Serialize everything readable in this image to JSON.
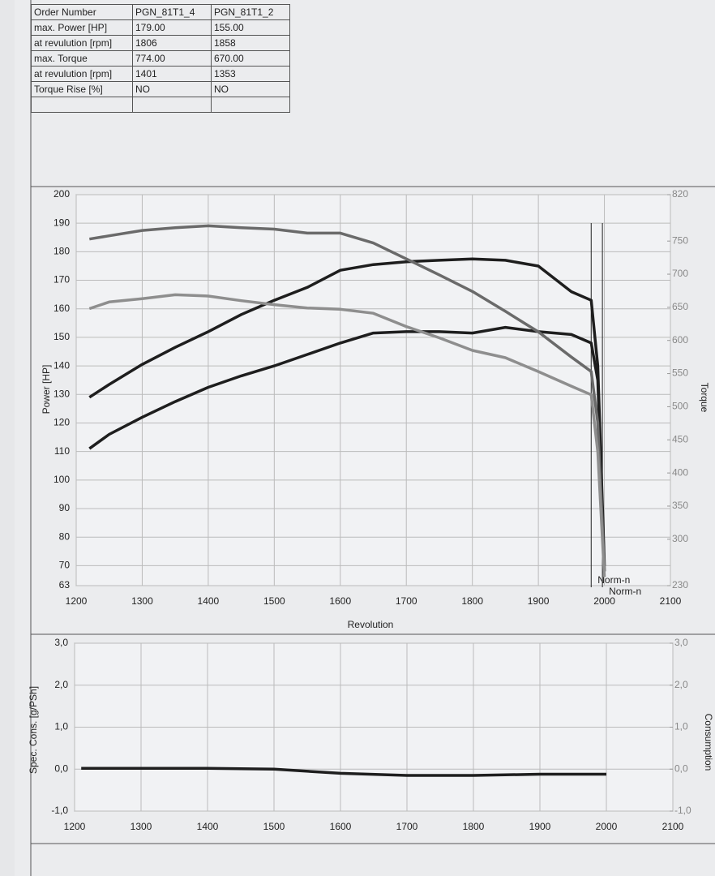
{
  "table": {
    "rows": [
      [
        "Order Number",
        "PGN_81T1_4",
        "PGN_81T1_2"
      ],
      [
        "max. Power [HP]",
        "179.00",
        "155.00"
      ],
      [
        "at revulution [rpm]",
        "1806",
        "1858"
      ],
      [
        "max. Torque",
        "774.00",
        "670.00"
      ],
      [
        "at revulution [rpm]",
        "1401",
        "1353"
      ],
      [
        "Torque Rise [%]",
        "NO",
        "NO"
      ]
    ]
  },
  "chart_data": [
    {
      "type": "line",
      "x_label": "Revolution",
      "y_label": "Power [HP]",
      "y2_label": "Torque",
      "grid": true,
      "x": [
        1220,
        1250,
        1300,
        1350,
        1400,
        1450,
        1500,
        1550,
        1600,
        1650,
        1700,
        1750,
        1800,
        1850,
        1900,
        1950,
        1980,
        1990,
        2000
      ],
      "xlim": [
        1200,
        2100
      ],
      "xticks": [
        1200,
        1300,
        1400,
        1500,
        1600,
        1700,
        1800,
        1900,
        2000,
        2100
      ],
      "ylim": [
        63,
        200
      ],
      "yticks": [
        63,
        70,
        80,
        90,
        100,
        110,
        120,
        130,
        140,
        150,
        160,
        170,
        180,
        190,
        200
      ],
      "y2lim": [
        230,
        820
      ],
      "y2ticks": [
        230,
        300,
        350,
        400,
        450,
        500,
        550,
        600,
        650,
        700,
        750,
        820
      ],
      "series": [
        {
          "color": "#1e1e1e",
          "values": [
            129,
            133.5,
            140.5,
            146.5,
            152,
            158,
            163,
            167.5,
            173.5,
            175.5,
            176.5,
            177,
            177.5,
            177,
            175,
            166,
            163,
            140,
            70
          ]
        },
        {
          "color": "#1e1e1e",
          "values": [
            111,
            116,
            122,
            127.5,
            132.5,
            136.5,
            140,
            144,
            148,
            151.5,
            152,
            152,
            151.5,
            153.5,
            152,
            151,
            148,
            135,
            68
          ]
        },
        {
          "color": "#6a6a6a",
          "axis": "y2",
          "values": [
            753,
            758,
            766,
            770,
            773,
            770,
            768,
            762,
            762,
            747,
            723,
            699,
            674,
            644,
            613,
            575,
            553,
            476,
            252
          ]
        },
        {
          "color": "#8e8e8e",
          "axis": "y2",
          "values": [
            648,
            658,
            663,
            669,
            667,
            660,
            654,
            649,
            647,
            641,
            621,
            604,
            585,
            574,
            553,
            531,
            518,
            432,
            243
          ]
        }
      ],
      "annotations": [
        {
          "text": "Norm-n",
          "x": 1980
        },
        {
          "text": "Norm-n",
          "x": 1997
        }
      ]
    },
    {
      "type": "line",
      "y_label": "Spec. Cons. [g/PSh]",
      "y2_label": "Consumption",
      "grid": true,
      "x": [
        1210,
        1300,
        1400,
        1500,
        1600,
        1700,
        1800,
        1900,
        2000
      ],
      "xlim": [
        1200,
        2100
      ],
      "xticks": [
        1200,
        1300,
        1400,
        1500,
        1600,
        1700,
        1800,
        1900,
        2000,
        2100
      ],
      "ylim": [
        -1,
        3
      ],
      "yticks": [
        {
          "value": -1,
          "label": "-1,0"
        },
        {
          "value": 0,
          "label": "0,0"
        },
        {
          "value": 1,
          "label": "1,0"
        },
        {
          "value": 2,
          "label": "2,0"
        },
        {
          "value": 3,
          "label": "3,0"
        }
      ],
      "y2lim": [
        -1,
        3
      ],
      "y2ticks": [
        {
          "value": -1,
          "label": "-1,0"
        },
        {
          "value": 0,
          "label": "0,0"
        },
        {
          "value": 1,
          "label": "1,0"
        },
        {
          "value": 2,
          "label": "2,0"
        },
        {
          "value": 3,
          "label": "3,0"
        }
      ],
      "series": [
        {
          "color": "#1e1e1e",
          "values": [
            0.02,
            0.02,
            0.02,
            0.0,
            -0.1,
            -0.15,
            -0.15,
            -0.12,
            -0.12
          ]
        }
      ]
    }
  ]
}
